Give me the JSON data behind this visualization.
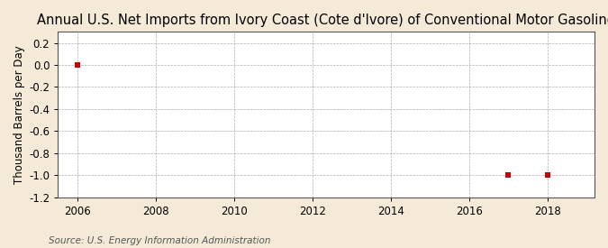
{
  "title": "Annual U.S. Net Imports from Ivory Coast (Cote d'Ivore) of Conventional Motor Gasoline",
  "ylabel": "Thousand Barrels per Day",
  "source": "Source: U.S. Energy Information Administration",
  "background_color": "#f5ead8",
  "plot_background_color": "#ffffff",
  "data_x": [
    2006,
    2017,
    2018
  ],
  "data_y": [
    0,
    -1,
    -1
  ],
  "marker_color": "#cc0000",
  "marker": "s",
  "marker_size": 4,
  "xlim": [
    2005.5,
    2019.2
  ],
  "ylim": [
    -1.2,
    0.3
  ],
  "xticks": [
    2006,
    2008,
    2010,
    2012,
    2014,
    2016,
    2018
  ],
  "yticks": [
    0.2,
    0.0,
    -0.2,
    -0.4,
    -0.6,
    -0.8,
    -1.0,
    -1.2
  ],
  "grid_color": "#999999",
  "grid_linestyle": "--",
  "title_fontsize": 10.5,
  "ylabel_fontsize": 8.5,
  "tick_fontsize": 8.5,
  "source_fontsize": 7.5
}
